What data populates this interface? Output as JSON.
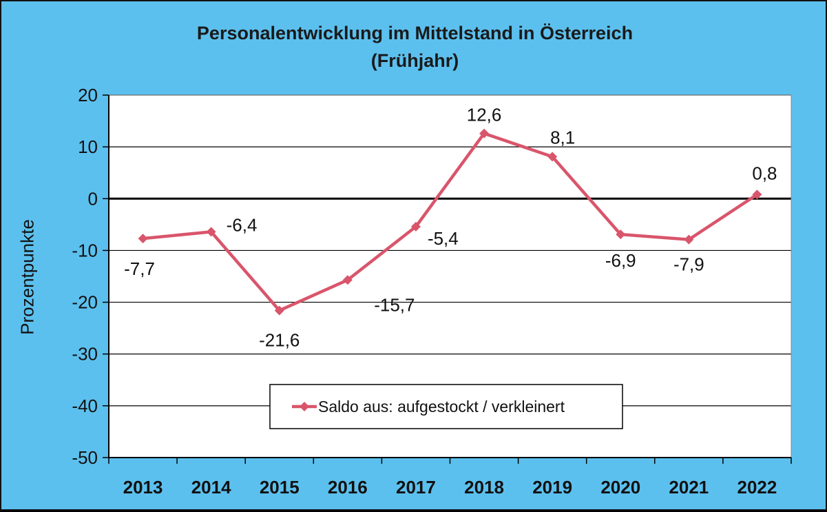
{
  "chart_data": {
    "type": "line",
    "title": "Personalentwicklung im Mittelstand in Österreich",
    "subtitle": "(Frühjahr)",
    "ylabel": "Prozentpunkte",
    "xlabel": "",
    "categories": [
      "2013",
      "2014",
      "2015",
      "2016",
      "2017",
      "2018",
      "2019",
      "2020",
      "2021",
      "2022"
    ],
    "series": [
      {
        "name": "Saldo aus: aufgestockt / verkleinert",
        "values": [
          -7.7,
          -6.4,
          -21.6,
          -15.7,
          -5.4,
          12.6,
          8.1,
          -6.9,
          -7.9,
          0.8
        ],
        "labels": [
          "-7,7",
          "-6,4",
          "-21,6",
          "-15,7",
          "-5,4",
          "12,6",
          "8,1",
          "-6,9",
          "-7,9",
          "0,8"
        ],
        "color": "#d9556b",
        "marker": "diamond"
      }
    ],
    "ylim": [
      -50,
      20
    ],
    "yticks": [
      20,
      10,
      0,
      -10,
      -20,
      -30,
      -40,
      -50
    ],
    "grid": true,
    "legend_position": "bottom-center",
    "colors": {
      "background": "#5cc0ee",
      "plot_area": "#ffffff"
    }
  }
}
